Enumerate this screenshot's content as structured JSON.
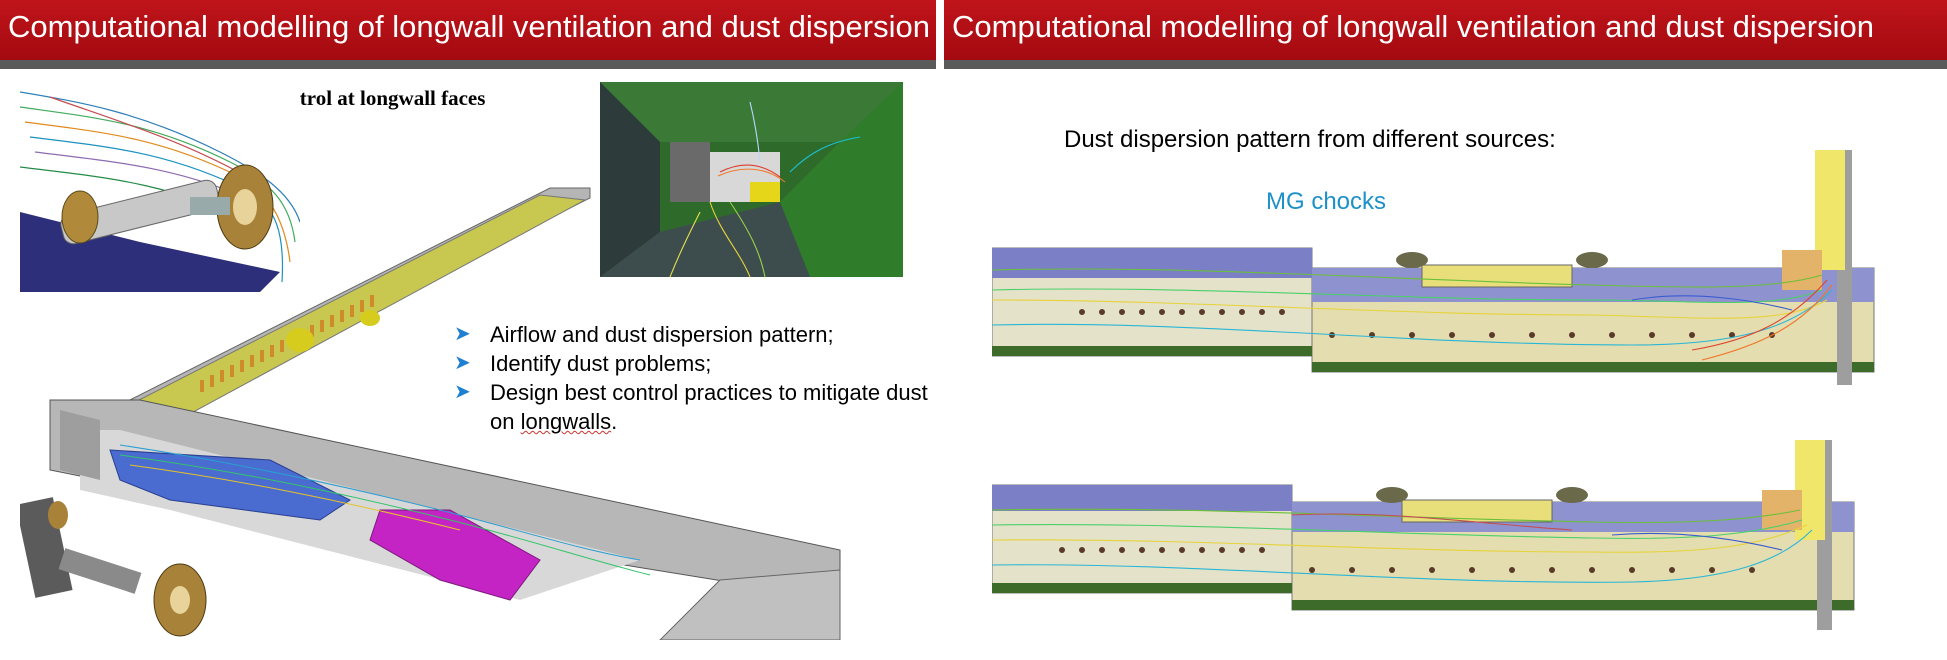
{
  "left_slide": {
    "title": "Computational modelling of longwall ventilation and dust dispersion",
    "subtitle": "Dust control at longwall faces",
    "bullets": [
      {
        "pre": "Airflow and dust dispersion pattern;",
        "flagged": "",
        "post": ""
      },
      {
        "pre": "Identify dust problems;",
        "flagged": "",
        "post": ""
      },
      {
        "pre": "Design best control practices to mitigate dust on ",
        "flagged": "longwalls",
        "post": "."
      }
    ],
    "bullet_icon": "arrow-bullet-icon"
  },
  "right_slide": {
    "title": "Computational modelling of longwall ventilation and dust dispersion",
    "heading": "Dust dispersion pattern from different sources:",
    "source_label": "MG chocks"
  },
  "colors": {
    "title_bar": "#b00d14",
    "title_shadow": "#5a5a5a",
    "label_blue": "#1e90c8",
    "bullet_arrow": "#1f7fd1"
  }
}
